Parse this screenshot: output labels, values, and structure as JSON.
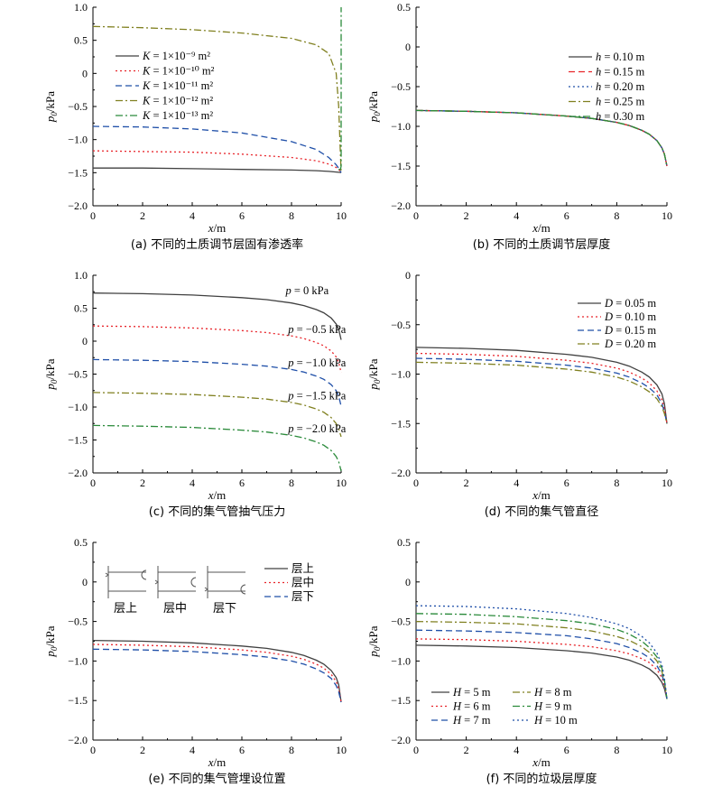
{
  "chart_data": [
    {
      "type": "line",
      "caption": "(a) 不同的土质调节层固有渗透率",
      "xlabel": "x/m",
      "ylabel": "p0/kPa",
      "xlim": [
        0,
        10
      ],
      "ylim": [
        -2.0,
        1.0
      ],
      "xticks": [
        "0",
        "2",
        "4",
        "6",
        "8",
        "10"
      ],
      "yticks": [
        "−2.0",
        "−1.5",
        "−1.0",
        "−0.5",
        "0",
        "0.5",
        "1.0"
      ],
      "legend_position": "top-left",
      "series": [
        {
          "name": "K = 1×10⁻⁹ m²",
          "color": "#404040",
          "dash": "solid",
          "x": [
            0,
            2,
            4,
            6,
            8,
            9,
            9.5,
            9.8,
            9.95,
            10
          ],
          "y": [
            -1.43,
            -1.43,
            -1.44,
            -1.45,
            -1.46,
            -1.47,
            -1.48,
            -1.49,
            -1.495,
            -1.5
          ]
        },
        {
          "name": "K = 1×10⁻¹⁰ m²",
          "color": "#e8242a",
          "dash": "dot",
          "x": [
            0,
            2,
            4,
            6,
            8,
            9,
            9.5,
            9.8,
            9.95,
            10
          ],
          "y": [
            -1.17,
            -1.18,
            -1.19,
            -1.22,
            -1.27,
            -1.32,
            -1.37,
            -1.42,
            -1.47,
            -1.5
          ]
        },
        {
          "name": "K = 1×10⁻¹¹ m²",
          "color": "#1f4fa8",
          "dash": "dash",
          "x": [
            0,
            2,
            4,
            6,
            8,
            9,
            9.5,
            9.8,
            9.95,
            10
          ],
          "y": [
            -0.8,
            -0.81,
            -0.84,
            -0.9,
            -1.03,
            -1.15,
            -1.27,
            -1.38,
            -1.46,
            -1.5
          ]
        },
        {
          "name": "K = 1×10⁻¹² m²",
          "color": "#808020",
          "dash": "dashdot",
          "x": [
            0,
            2,
            4,
            6,
            8,
            9,
            9.5,
            9.8,
            9.9,
            9.95,
            10
          ],
          "y": [
            0.71,
            0.69,
            0.66,
            0.61,
            0.53,
            0.43,
            0.3,
            0.0,
            -0.5,
            -1.0,
            -1.5
          ]
        },
        {
          "name": "K = 1×10⁻¹³ m²",
          "color": "#2a8a3a",
          "dash": "dashdot",
          "x": [
            9.9,
            9.97,
            10,
            10,
            10
          ],
          "y": [
            -1.45,
            -1.45,
            -1.4,
            0.0,
            1.0
          ]
        }
      ]
    },
    {
      "type": "line",
      "caption": "(b) 不同的土质调节层厚度",
      "xlabel": "x/m",
      "ylabel": "p0/kPa",
      "xlim": [
        0,
        10
      ],
      "ylim": [
        -2.0,
        0.5
      ],
      "xticks": [
        "0",
        "2",
        "4",
        "6",
        "8",
        "10"
      ],
      "yticks": [
        "−2.0",
        "−1.5",
        "−1.0",
        "−0.5",
        "0",
        "0.5"
      ],
      "legend_position": "top-right",
      "series": [
        {
          "name": "h = 0.10 m",
          "color": "#404040",
          "dash": "solid",
          "x": [
            0,
            2,
            4,
            6,
            7,
            8,
            8.5,
            9,
            9.3,
            9.6,
            9.8,
            9.9,
            10
          ],
          "y": [
            -0.8,
            -0.81,
            -0.83,
            -0.87,
            -0.9,
            -0.95,
            -0.99,
            -1.05,
            -1.1,
            -1.18,
            -1.27,
            -1.35,
            -1.5
          ]
        },
        {
          "name": "h = 0.15 m",
          "color": "#e8242a",
          "dash": "dash",
          "x": [
            0,
            2,
            4,
            6,
            7,
            8,
            8.5,
            9,
            9.3,
            9.6,
            9.8,
            9.9,
            10
          ],
          "y": [
            -0.8,
            -0.81,
            -0.83,
            -0.87,
            -0.9,
            -0.95,
            -0.99,
            -1.05,
            -1.1,
            -1.18,
            -1.27,
            -1.35,
            -1.5
          ]
        },
        {
          "name": "h = 0.20 m",
          "color": "#1f4fa8",
          "dash": "dot",
          "x": [
            0,
            2,
            4,
            6,
            7,
            8,
            8.5,
            9,
            9.3,
            9.6,
            9.8,
            9.9,
            10
          ],
          "y": [
            -0.8,
            -0.81,
            -0.83,
            -0.87,
            -0.9,
            -0.95,
            -0.99,
            -1.05,
            -1.1,
            -1.18,
            -1.27,
            -1.35,
            -1.5
          ]
        },
        {
          "name": "h = 0.25 m",
          "color": "#808020",
          "dash": "dashdot",
          "x": [
            0,
            2,
            4,
            6,
            7,
            8,
            8.5,
            9,
            9.3,
            9.6,
            9.8,
            9.9,
            10
          ],
          "y": [
            -0.8,
            -0.81,
            -0.83,
            -0.87,
            -0.9,
            -0.95,
            -0.99,
            -1.05,
            -1.1,
            -1.18,
            -1.27,
            -1.35,
            -1.5
          ]
        },
        {
          "name": "h = 0.30 m",
          "color": "#2a8a3a",
          "dash": "dashdot",
          "x": [
            0,
            2,
            4,
            6,
            7,
            8,
            8.5,
            9,
            9.3,
            9.6,
            9.8,
            9.9,
            10
          ],
          "y": [
            -0.8,
            -0.81,
            -0.83,
            -0.87,
            -0.9,
            -0.95,
            -0.99,
            -1.05,
            -1.1,
            -1.18,
            -1.27,
            -1.35,
            -1.5
          ]
        }
      ]
    },
    {
      "type": "line",
      "caption": "(c) 不同的集气管抽气压力",
      "xlabel": "x/m",
      "ylabel": "p0/kPa",
      "xlim": [
        0,
        10
      ],
      "ylim": [
        -2.0,
        1.0
      ],
      "xticks": [
        "0",
        "2",
        "4",
        "6",
        "8",
        "10"
      ],
      "yticks": [
        "−2.0",
        "−1.5",
        "−1.0",
        "−0.5",
        "0",
        "0.5",
        "1.0"
      ],
      "series": [
        {
          "name": "p = 0 kPa",
          "color": "#404040",
          "dash": "solid",
          "label_x": 8.2,
          "label_y": 0.77,
          "x": [
            0,
            2,
            4,
            6,
            7,
            8,
            8.5,
            9,
            9.3,
            9.6,
            9.8,
            9.9,
            10
          ],
          "y": [
            0.73,
            0.72,
            0.7,
            0.66,
            0.63,
            0.58,
            0.54,
            0.48,
            0.43,
            0.35,
            0.26,
            0.18,
            0.02
          ]
        },
        {
          "name": "p = −0.5 kPa",
          "color": "#e8242a",
          "dash": "dot",
          "label_x": 8.3,
          "label_y": 0.18,
          "x": [
            0,
            2,
            4,
            6,
            7,
            8,
            8.5,
            9,
            9.3,
            9.6,
            9.8,
            9.9,
            10
          ],
          "y": [
            0.23,
            0.22,
            0.2,
            0.16,
            0.13,
            0.08,
            0.04,
            -0.02,
            -0.07,
            -0.15,
            -0.24,
            -0.32,
            -0.48
          ]
        },
        {
          "name": "p = −1.0 kPa",
          "color": "#1f4fa8",
          "dash": "dash",
          "label_x": 8.3,
          "label_y": -0.33,
          "x": [
            0,
            2,
            4,
            6,
            7,
            8,
            8.5,
            9,
            9.3,
            9.6,
            9.8,
            9.9,
            10
          ],
          "y": [
            -0.28,
            -0.29,
            -0.31,
            -0.35,
            -0.38,
            -0.43,
            -0.47,
            -0.53,
            -0.58,
            -0.66,
            -0.75,
            -0.83,
            -0.99
          ]
        },
        {
          "name": "p = −1.5 kPa",
          "color": "#808020",
          "dash": "dashdot",
          "label_x": 8.3,
          "label_y": -0.83,
          "x": [
            0,
            2,
            4,
            6,
            7,
            8,
            8.5,
            9,
            9.3,
            9.6,
            9.8,
            9.9,
            10
          ],
          "y": [
            -0.78,
            -0.79,
            -0.81,
            -0.85,
            -0.88,
            -0.93,
            -0.97,
            -1.03,
            -1.08,
            -1.16,
            -1.25,
            -1.33,
            -1.45
          ]
        },
        {
          "name": "p = −2.0 kPa",
          "color": "#2a8a3a",
          "dash": "dashdot",
          "label_x": 8.3,
          "label_y": -1.33,
          "x": [
            0,
            2,
            4,
            6,
            7,
            8,
            8.5,
            9,
            9.3,
            9.6,
            9.8,
            9.9,
            10
          ],
          "y": [
            -1.28,
            -1.29,
            -1.31,
            -1.35,
            -1.38,
            -1.43,
            -1.47,
            -1.53,
            -1.58,
            -1.66,
            -1.75,
            -1.83,
            -1.97
          ]
        }
      ]
    },
    {
      "type": "line",
      "caption": "(d) 不同的集气管直径",
      "xlabel": "x/m",
      "ylabel": "p0/kPa",
      "xlim": [
        0,
        10
      ],
      "ylim": [
        -2.0,
        0
      ],
      "xticks": [
        "0",
        "2",
        "4",
        "6",
        "8",
        "10"
      ],
      "yticks": [
        "−2.0",
        "−1.5",
        "−1.0",
        "−0.5",
        "0"
      ],
      "legend_position": "top-right",
      "series": [
        {
          "name": "D = 0.05 m",
          "color": "#404040",
          "dash": "solid",
          "x": [
            0,
            2,
            4,
            6,
            7,
            8,
            8.5,
            9,
            9.3,
            9.6,
            9.8,
            9.9,
            10
          ],
          "y": [
            -0.73,
            -0.74,
            -0.76,
            -0.8,
            -0.83,
            -0.88,
            -0.92,
            -0.98,
            -1.03,
            -1.11,
            -1.2,
            -1.3,
            -1.5
          ]
        },
        {
          "name": "D = 0.10 m",
          "color": "#e8242a",
          "dash": "dot",
          "x": [
            0,
            2,
            4,
            6,
            7,
            8,
            8.5,
            9,
            9.3,
            9.6,
            9.8,
            9.9,
            10
          ],
          "y": [
            -0.79,
            -0.8,
            -0.82,
            -0.86,
            -0.89,
            -0.94,
            -0.98,
            -1.04,
            -1.09,
            -1.17,
            -1.26,
            -1.35,
            -1.5
          ]
        },
        {
          "name": "D = 0.15 m",
          "color": "#1f4fa8",
          "dash": "dash",
          "x": [
            0,
            2,
            4,
            6,
            7,
            8,
            8.5,
            9,
            9.3,
            9.6,
            9.8,
            9.9,
            10
          ],
          "y": [
            -0.84,
            -0.85,
            -0.87,
            -0.91,
            -0.94,
            -0.99,
            -1.03,
            -1.09,
            -1.14,
            -1.21,
            -1.3,
            -1.38,
            -1.5
          ]
        },
        {
          "name": "D = 0.20 m",
          "color": "#808020",
          "dash": "dashdot",
          "x": [
            0,
            2,
            4,
            6,
            7,
            8,
            8.5,
            9,
            9.3,
            9.6,
            9.8,
            9.9,
            10
          ],
          "y": [
            -0.88,
            -0.89,
            -0.91,
            -0.95,
            -0.98,
            -1.03,
            -1.07,
            -1.13,
            -1.18,
            -1.25,
            -1.33,
            -1.4,
            -1.5
          ]
        }
      ]
    },
    {
      "type": "line",
      "caption": "(e) 不同的集气管埋设位置",
      "xlabel": "x/m",
      "ylabel": "p0/kPa",
      "xlim": [
        0,
        10
      ],
      "ylim": [
        -2.0,
        0.5
      ],
      "xticks": [
        "0",
        "2",
        "4",
        "6",
        "8",
        "10"
      ],
      "yticks": [
        "−2.0",
        "−1.5",
        "−1.0",
        "−0.5",
        "0",
        "0.5"
      ],
      "legend_position": "top-right",
      "inset_labels": [
        "层上",
        "层中",
        "层下"
      ],
      "series": [
        {
          "name": "层上",
          "color": "#404040",
          "dash": "solid",
          "x": [
            0,
            2,
            4,
            6,
            7,
            8,
            8.5,
            9,
            9.3,
            9.6,
            9.8,
            9.9,
            10
          ],
          "y": [
            -0.74,
            -0.75,
            -0.77,
            -0.81,
            -0.84,
            -0.89,
            -0.93,
            -0.99,
            -1.04,
            -1.12,
            -1.21,
            -1.3,
            -1.52
          ]
        },
        {
          "name": "层中",
          "color": "#e8242a",
          "dash": "dot",
          "x": [
            0,
            2,
            4,
            6,
            7,
            8,
            8.5,
            9,
            9.3,
            9.6,
            9.8,
            9.9,
            10
          ],
          "y": [
            -0.79,
            -0.8,
            -0.82,
            -0.86,
            -0.89,
            -0.94,
            -0.98,
            -1.04,
            -1.09,
            -1.17,
            -1.26,
            -1.35,
            -1.52
          ]
        },
        {
          "name": "层下",
          "color": "#1f4fa8",
          "dash": "dash",
          "x": [
            0,
            2,
            4,
            6,
            7,
            8,
            8.5,
            9,
            9.3,
            9.6,
            9.8,
            9.9,
            10
          ],
          "y": [
            -0.85,
            -0.86,
            -0.88,
            -0.92,
            -0.95,
            -1.0,
            -1.04,
            -1.1,
            -1.15,
            -1.22,
            -1.31,
            -1.39,
            -1.52
          ]
        }
      ]
    },
    {
      "type": "line",
      "caption": "(f) 不同的垃圾层厚度",
      "xlabel": "x/m",
      "ylabel": "p0/kPa",
      "xlim": [
        0,
        10
      ],
      "ylim": [
        -2.0,
        0.5
      ],
      "xticks": [
        "0",
        "2",
        "4",
        "6",
        "8",
        "10"
      ],
      "yticks": [
        "−2.0",
        "−1.5",
        "−1.0",
        "−0.5",
        "0",
        "0.5"
      ],
      "legend_position": "bottom-left",
      "series": [
        {
          "name": "H = 5 m",
          "color": "#404040",
          "dash": "solid",
          "x": [
            0,
            2,
            4,
            6,
            7,
            8,
            8.5,
            9,
            9.3,
            9.6,
            9.8,
            9.9,
            10
          ],
          "y": [
            -0.8,
            -0.81,
            -0.83,
            -0.87,
            -0.9,
            -0.95,
            -0.99,
            -1.05,
            -1.1,
            -1.18,
            -1.27,
            -1.35,
            -1.48
          ]
        },
        {
          "name": "H = 6 m",
          "color": "#e8242a",
          "dash": "dot",
          "x": [
            0,
            2,
            4,
            6,
            7,
            8,
            8.5,
            9,
            9.3,
            9.6,
            9.8,
            9.9,
            10
          ],
          "y": [
            -0.72,
            -0.73,
            -0.75,
            -0.79,
            -0.82,
            -0.87,
            -0.91,
            -0.97,
            -1.02,
            -1.11,
            -1.21,
            -1.31,
            -1.48
          ]
        },
        {
          "name": "H = 7 m",
          "color": "#1f4fa8",
          "dash": "dash",
          "x": [
            0,
            2,
            4,
            6,
            7,
            8,
            8.5,
            9,
            9.3,
            9.6,
            9.8,
            9.9,
            10
          ],
          "y": [
            -0.61,
            -0.62,
            -0.64,
            -0.68,
            -0.72,
            -0.78,
            -0.83,
            -0.9,
            -0.96,
            -1.06,
            -1.17,
            -1.28,
            -1.48
          ]
        },
        {
          "name": "H = 8 m",
          "color": "#808020",
          "dash": "dashdot",
          "x": [
            0,
            2,
            4,
            6,
            7,
            8,
            8.5,
            9,
            9.3,
            9.6,
            9.8,
            9.9,
            10
          ],
          "y": [
            -0.5,
            -0.51,
            -0.53,
            -0.58,
            -0.62,
            -0.69,
            -0.74,
            -0.82,
            -0.89,
            -1.0,
            -1.13,
            -1.26,
            -1.48
          ]
        },
        {
          "name": "H = 9 m",
          "color": "#2a8a3a",
          "dash": "dashdot",
          "x": [
            0,
            2,
            4,
            6,
            7,
            8,
            8.5,
            9,
            9.3,
            9.6,
            9.8,
            9.9,
            10
          ],
          "y": [
            -0.4,
            -0.41,
            -0.44,
            -0.49,
            -0.53,
            -0.6,
            -0.66,
            -0.75,
            -0.83,
            -0.95,
            -1.09,
            -1.24,
            -1.48
          ]
        },
        {
          "name": "H = 10 m",
          "color": "#1f4fa8",
          "dash": "dot",
          "x": [
            0,
            2,
            4,
            6,
            7,
            8,
            8.5,
            9,
            9.3,
            9.6,
            9.8,
            9.9,
            10
          ],
          "y": [
            -0.3,
            -0.31,
            -0.34,
            -0.4,
            -0.45,
            -0.53,
            -0.59,
            -0.69,
            -0.77,
            -0.9,
            -1.05,
            -1.22,
            -1.48
          ]
        }
      ]
    }
  ]
}
